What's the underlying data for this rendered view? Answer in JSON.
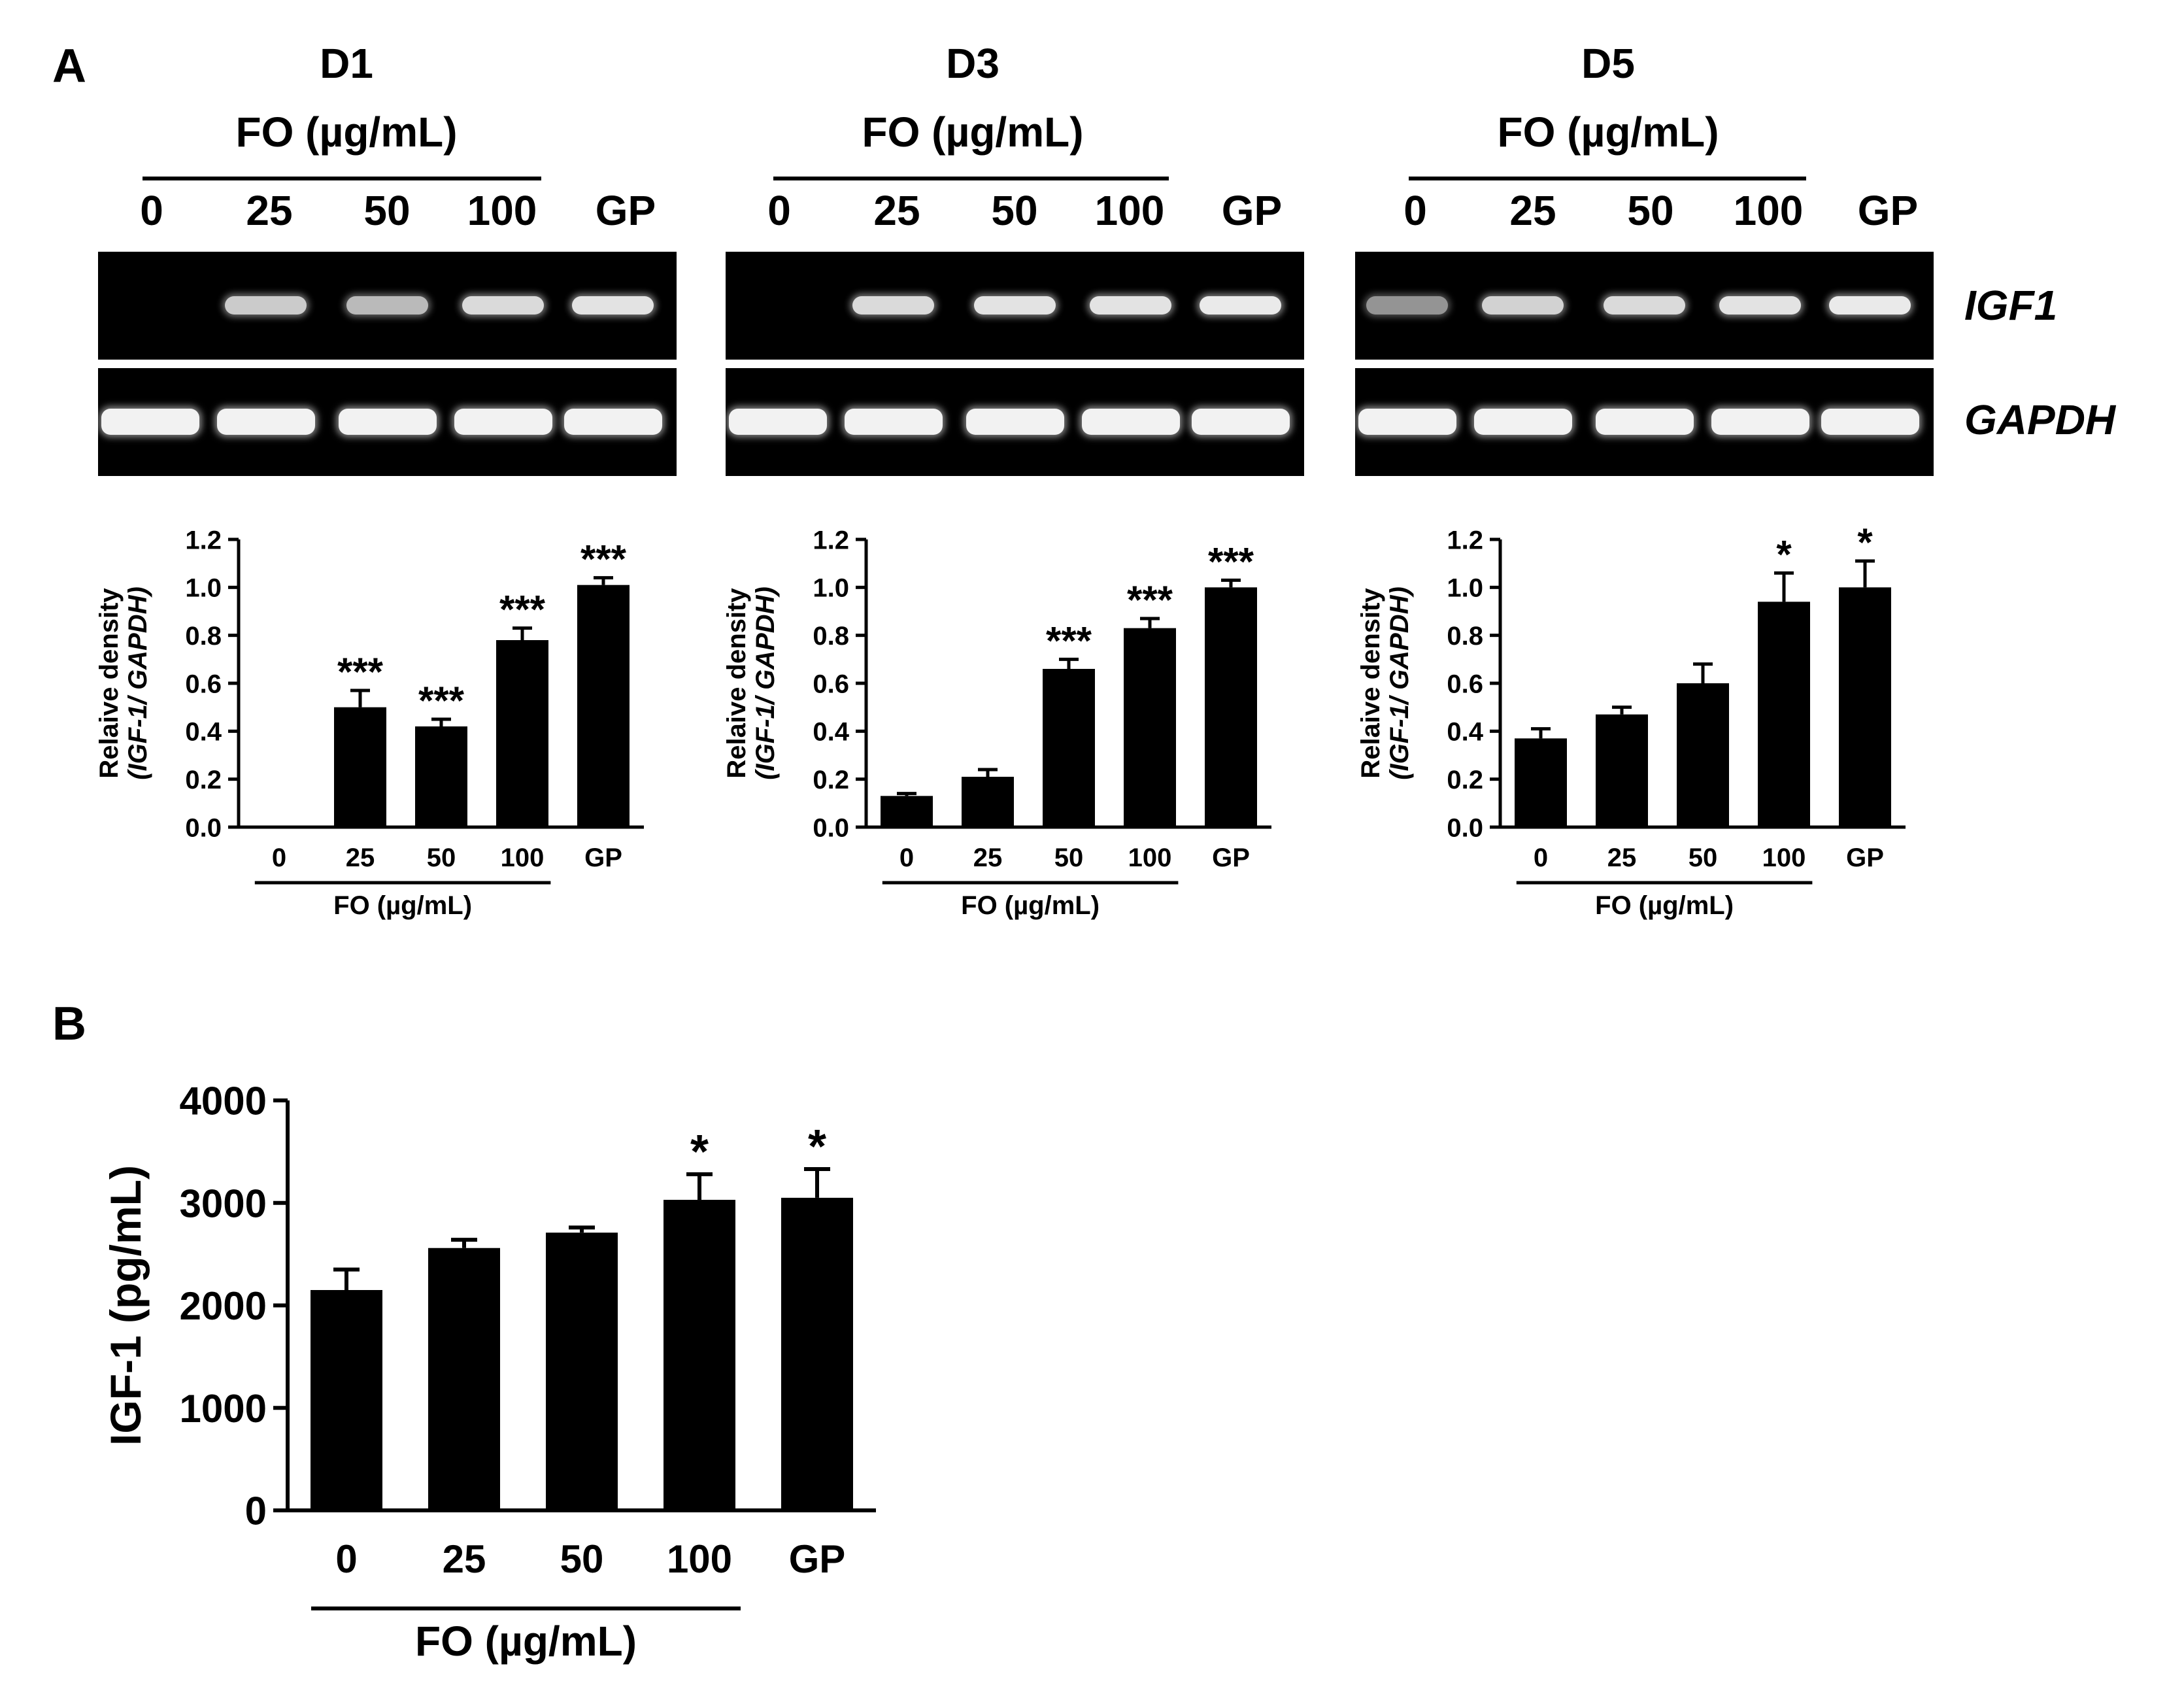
{
  "panel_a": {
    "label": "A",
    "unit_label": "FO (µg/mL)",
    "lanes": [
      "0",
      "25",
      "50",
      "100",
      "GP"
    ],
    "genes": [
      "IGF1",
      "GAPDH"
    ],
    "days": [
      {
        "day": "D1",
        "igf1_bands": [
          0.0,
          0.75,
          0.65,
          0.85,
          0.9
        ],
        "gapdh_bands": [
          1,
          1,
          1,
          1,
          1
        ]
      },
      {
        "day": "D3",
        "igf1_bands": [
          0.0,
          0.85,
          0.9,
          0.9,
          0.95
        ],
        "gapdh_bands": [
          1,
          1,
          1,
          1,
          1
        ]
      },
      {
        "day": "D5",
        "igf1_bands": [
          0.4,
          0.8,
          0.85,
          0.9,
          0.95
        ],
        "gapdh_bands": [
          1,
          1,
          1,
          1,
          1
        ]
      }
    ]
  },
  "panel_b": {
    "label": "B"
  },
  "chart_data": [
    {
      "type": "bar",
      "panel": "A-D1",
      "categories": [
        "0",
        "25",
        "50",
        "100",
        "GP"
      ],
      "values": [
        0.0,
        0.5,
        0.42,
        0.78,
        1.01
      ],
      "errors": [
        0.0,
        0.07,
        0.03,
        0.05,
        0.03
      ],
      "significance": [
        "",
        "***",
        "***",
        "***",
        "***"
      ],
      "ylabel_line1": "Relaive density",
      "ylabel_line2": "(IGF-1/ GAPDH)",
      "xgroup_label": "FO (µg/mL)",
      "ylim": [
        0,
        1.2
      ],
      "yticks": [
        "0.0",
        "0.2",
        "0.4",
        "0.6",
        "0.8",
        "1.0",
        "1.2"
      ]
    },
    {
      "type": "bar",
      "panel": "A-D3",
      "categories": [
        "0",
        "25",
        "50",
        "100",
        "GP"
      ],
      "values": [
        0.13,
        0.21,
        0.66,
        0.83,
        1.0
      ],
      "errors": [
        0.01,
        0.03,
        0.04,
        0.04,
        0.03
      ],
      "significance": [
        "",
        "",
        "***",
        "***",
        "***"
      ],
      "ylabel_line1": "Relaive density",
      "ylabel_line2": "(IGF-1/ GAPDH)",
      "xgroup_label": "FO (µg/mL)",
      "ylim": [
        0,
        1.2
      ],
      "yticks": [
        "0.0",
        "0.2",
        "0.4",
        "0.6",
        "0.8",
        "1.0",
        "1.2"
      ]
    },
    {
      "type": "bar",
      "panel": "A-D5",
      "categories": [
        "0",
        "25",
        "50",
        "100",
        "GP"
      ],
      "values": [
        0.37,
        0.47,
        0.6,
        0.94,
        1.0
      ],
      "errors": [
        0.04,
        0.03,
        0.08,
        0.12,
        0.11
      ],
      "significance": [
        "",
        "",
        "",
        "*",
        "*"
      ],
      "ylabel_line1": "Relaive density",
      "ylabel_line2": "(IGF-1/ GAPDH)",
      "xgroup_label": "FO (µg/mL)",
      "ylim": [
        0,
        1.2
      ],
      "yticks": [
        "0.0",
        "0.2",
        "0.4",
        "0.6",
        "0.8",
        "1.0",
        "1.2"
      ]
    },
    {
      "type": "bar",
      "panel": "B",
      "categories": [
        "0",
        "25",
        "50",
        "100",
        "GP"
      ],
      "values": [
        2150,
        2560,
        2710,
        3030,
        3050
      ],
      "errors": [
        200,
        80,
        50,
        250,
        280
      ],
      "significance": [
        "",
        "",
        "",
        "*",
        "*"
      ],
      "ylabel_line1": "IGF-1 (pg/mL)",
      "ylabel_line2": "",
      "xgroup_label": "FO (µg/mL)",
      "ylim": [
        0,
        4000
      ],
      "yticks": [
        "0",
        "1000",
        "2000",
        "3000",
        "4000"
      ]
    }
  ]
}
